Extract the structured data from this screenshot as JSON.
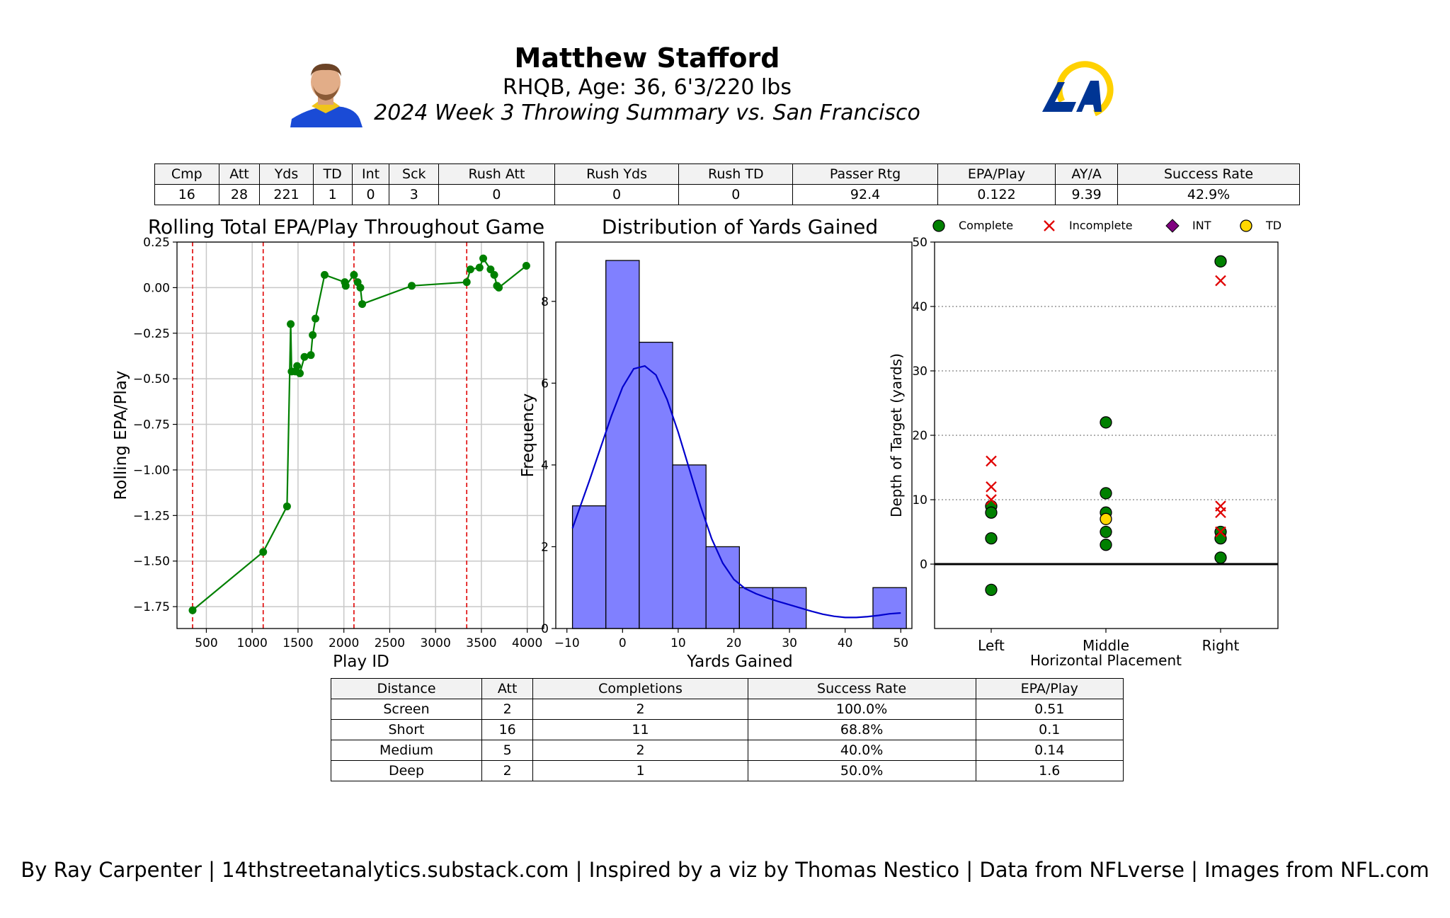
{
  "header": {
    "title": "Matthew Stafford",
    "subtitle": "RHQB, Age: 36, 6'3/220 lbs",
    "summary": "2024 Week 3 Throwing Summary vs. San Francisco"
  },
  "stats_table": {
    "columns": [
      "Cmp",
      "Att",
      "Yds",
      "TD",
      "Int",
      "Sck",
      "Rush Att",
      "Rush Yds",
      "Rush TD",
      "Passer Rtg",
      "EPA/Play",
      "AY/A",
      "Success Rate"
    ],
    "values": [
      "16",
      "28",
      "221",
      "1",
      "0",
      "3",
      "0",
      "0",
      "0",
      "92.4",
      "0.122",
      "9.39",
      "42.9%"
    ]
  },
  "distance_table": {
    "columns": [
      "Distance",
      "Att",
      "Completions",
      "Success Rate",
      "EPA/Play"
    ],
    "rows": [
      [
        "Screen",
        "2",
        "2",
        "100.0%",
        "0.51"
      ],
      [
        "Short",
        "16",
        "11",
        "68.8%",
        "0.1"
      ],
      [
        "Medium",
        "5",
        "2",
        "40.0%",
        "0.14"
      ],
      [
        "Deep",
        "2",
        "1",
        "50.0%",
        "1.6"
      ]
    ]
  },
  "footer": "By Ray Carpenter | 14thstreetanalytics.substack.com | Inspired by a viz by Thomas Nestico | Data from NFLverse | Images from NFL.com",
  "chart_data": [
    {
      "type": "line",
      "title": "Rolling Total EPA/Play Throughout Game",
      "xlabel": "Play ID",
      "ylabel": "Rolling EPA/Play",
      "xlim": [
        180,
        4180
      ],
      "ylim": [
        -1.87,
        0.25
      ],
      "xticks": [
        500,
        1000,
        1500,
        2000,
        2500,
        3000,
        3500,
        4000
      ],
      "yticks": [
        0.25,
        0.0,
        -0.25,
        -0.5,
        -0.75,
        -1.0,
        -1.25,
        -1.5,
        -1.75
      ],
      "ytick_labels": [
        "0.25",
        "0.00",
        "−0.25",
        "−0.50",
        "−0.75",
        "−1.00",
        "−1.25",
        "−1.50",
        "−1.75"
      ],
      "grid": true,
      "color": "#008000",
      "quarter_lines": [
        350,
        1120,
        2110,
        3340
      ],
      "x": [
        350,
        1120,
        1380,
        1420,
        1430,
        1470,
        1490,
        1520,
        1570,
        1640,
        1660,
        1690,
        1790,
        2010,
        2020,
        2110,
        2150,
        2180,
        2200,
        2740,
        3340,
        3380,
        3480,
        3520,
        3600,
        3640,
        3670,
        3690,
        3990
      ],
      "y": [
        -1.77,
        -1.45,
        -1.2,
        -0.2,
        -0.46,
        -0.46,
        -0.43,
        -0.47,
        -0.38,
        -0.37,
        -0.26,
        -0.17,
        0.07,
        0.03,
        0.01,
        0.07,
        0.03,
        0.0,
        -0.09,
        0.01,
        0.03,
        0.1,
        0.11,
        0.16,
        0.1,
        0.07,
        0.01,
        0.0,
        0.12
      ]
    },
    {
      "type": "bar",
      "title": "Distribution of Yards Gained",
      "xlabel": "Yards Gained",
      "ylabel": "Frequency",
      "bin_edges": [
        -9,
        -3,
        3,
        9,
        15,
        21,
        27,
        33,
        39,
        45,
        51
      ],
      "values": [
        3,
        9,
        7,
        4,
        2,
        1,
        1,
        0,
        0,
        1
      ],
      "xlim": [
        -12,
        52
      ],
      "ylim": [
        0,
        9.45
      ],
      "xticks": [
        -10,
        0,
        10,
        20,
        30,
        40,
        50
      ],
      "xtick_labels": [
        "−10",
        "0",
        "10",
        "20",
        "30",
        "40",
        "50"
      ],
      "yticks": [
        0,
        2,
        4,
        6,
        8
      ],
      "bar_color": "#8080ff",
      "kde_color": "#0000cd",
      "kde_x": [
        -9,
        -6,
        -4,
        -2,
        0,
        2,
        4,
        6,
        8,
        10,
        12,
        14,
        16,
        18,
        20,
        22,
        24,
        26,
        28,
        30,
        32,
        34,
        36,
        38,
        40,
        42,
        44,
        46,
        48,
        50
      ],
      "kde_y": [
        2.45,
        3.6,
        4.4,
        5.2,
        5.9,
        6.35,
        6.42,
        6.2,
        5.6,
        4.8,
        3.9,
        3.0,
        2.2,
        1.6,
        1.2,
        0.98,
        0.85,
        0.75,
        0.66,
        0.58,
        0.5,
        0.42,
        0.35,
        0.3,
        0.27,
        0.27,
        0.29,
        0.32,
        0.36,
        0.38
      ]
    },
    {
      "type": "scatter",
      "xlabel": "Horizontal Placement",
      "ylabel": "Depth of Target (yards)",
      "categories": [
        "Left",
        "Middle",
        "Right"
      ],
      "ylim": [
        -10,
        50
      ],
      "yticks": [
        0,
        10,
        20,
        30,
        40,
        50
      ],
      "legend": [
        {
          "label": "Complete",
          "marker": "circle",
          "color": "#008000"
        },
        {
          "label": "Incomplete",
          "marker": "x",
          "color": "#e00000"
        },
        {
          "label": "INT",
          "marker": "diamond",
          "color": "#800080"
        },
        {
          "label": "TD",
          "marker": "circle",
          "color": "#ffd700"
        }
      ],
      "points": [
        {
          "x": "Left",
          "y": 9,
          "type": "Complete"
        },
        {
          "x": "Left",
          "y": 8,
          "type": "Complete"
        },
        {
          "x": "Left",
          "y": 4,
          "type": "Complete"
        },
        {
          "x": "Left",
          "y": -4,
          "type": "Complete"
        },
        {
          "x": "Left",
          "y": 16,
          "type": "Incomplete"
        },
        {
          "x": "Left",
          "y": 12,
          "type": "Incomplete"
        },
        {
          "x": "Left",
          "y": 10,
          "type": "Incomplete"
        },
        {
          "x": "Middle",
          "y": 22,
          "type": "Complete"
        },
        {
          "x": "Middle",
          "y": 11,
          "type": "Complete"
        },
        {
          "x": "Middle",
          "y": 8,
          "type": "Complete"
        },
        {
          "x": "Middle",
          "y": 5,
          "type": "Complete"
        },
        {
          "x": "Middle",
          "y": 3,
          "type": "Complete"
        },
        {
          "x": "Middle",
          "y": 7,
          "type": "TD"
        },
        {
          "x": "Right",
          "y": 47,
          "type": "Complete"
        },
        {
          "x": "Right",
          "y": 5,
          "type": "Complete"
        },
        {
          "x": "Right",
          "y": 4,
          "type": "Complete"
        },
        {
          "x": "Right",
          "y": 1,
          "type": "Complete"
        },
        {
          "x": "Right",
          "y": 44,
          "type": "Incomplete"
        },
        {
          "x": "Right",
          "y": 9,
          "type": "Incomplete"
        },
        {
          "x": "Right",
          "y": 8,
          "type": "Incomplete"
        },
        {
          "x": "Right",
          "y": 5,
          "type": "Incomplete"
        }
      ]
    }
  ]
}
